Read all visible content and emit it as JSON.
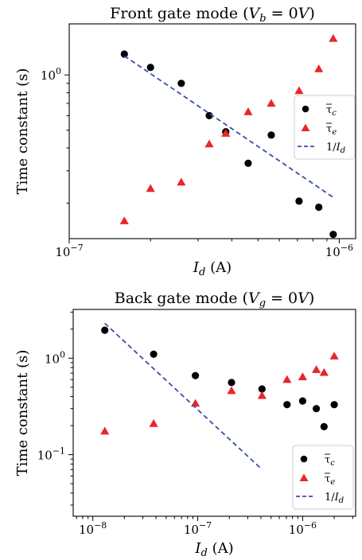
{
  "chart_data": [
    {
      "type": "scatter",
      "title": "Front gate mode ($V_b = 0V$)",
      "title_parts": [
        "Front gate mode (",
        "V",
        "b",
        " = 0",
        "V",
        ")"
      ],
      "xlabel_parts": [
        "I",
        "d",
        " (A)"
      ],
      "ylabel": "Time constant (s)",
      "xscale": "log",
      "yscale": "log",
      "xlim": [
        1e-07,
        1.15e-06
      ],
      "ylim": [
        0.128,
        1.9
      ],
      "xticks": [
        {
          "value": 1e-07,
          "base": "10",
          "exp": "−7"
        },
        {
          "value": 1e-06,
          "base": "10",
          "exp": "−6"
        }
      ],
      "yticks": [
        {
          "value": 1.0,
          "base": "10",
          "exp": "0"
        }
      ],
      "series": [
        {
          "name": "τ̄c",
          "marker": "circle",
          "color": "#000000",
          "x": [
            1.6e-07,
            2e-07,
            2.6e-07,
            3.3e-07,
            3.8e-07,
            4.6e-07,
            5.6e-07,
            7.1e-07,
            8.4e-07,
            9.5e-07
          ],
          "y": [
            1.3,
            1.1,
            0.9,
            0.6,
            0.49,
            0.33,
            0.47,
            0.205,
            0.19,
            0.135
          ]
        },
        {
          "name": "τ̄e",
          "marker": "triangle",
          "color": "#e8262b",
          "x": [
            1.6e-07,
            2e-07,
            2.6e-07,
            3.3e-07,
            3.8e-07,
            4.6e-07,
            5.6e-07,
            7.1e-07,
            8.4e-07,
            9.5e-07
          ],
          "y": [
            0.16,
            0.24,
            0.26,
            0.42,
            0.48,
            0.63,
            0.7,
            0.82,
            1.08,
            1.58
          ]
        },
        {
          "name": "1/Id",
          "line": "dashed",
          "color": "#3b4fa0",
          "x": [
            1.6e-07,
            9.5e-07
          ],
          "y": [
            1.27,
            0.215
          ]
        }
      ],
      "legend": "right",
      "legend_entries": [
        {
          "sym": "τ",
          "sub": "c",
          "overbar": true
        },
        {
          "sym": "τ",
          "sub": "e",
          "overbar": true
        },
        {
          "sym": "1/",
          "italic": "I",
          "sub": "d"
        }
      ]
    },
    {
      "type": "scatter",
      "title": "Back gate mode ($V_g = 0V$)",
      "title_parts": [
        "Back gate mode (",
        "V",
        "g",
        " = 0",
        "V",
        ")"
      ],
      "xlabel_parts": [
        "I",
        "d",
        " (A)"
      ],
      "ylabel": "Time constant (s)",
      "xscale": "log",
      "yscale": "log",
      "xlim": [
        6.5e-09,
        3.2e-06
      ],
      "ylim": [
        0.023,
        3.2
      ],
      "xticks": [
        {
          "value": 1e-08,
          "base": "10",
          "exp": "−8"
        },
        {
          "value": 1e-07,
          "base": "10",
          "exp": "−7"
        },
        {
          "value": 1e-06,
          "base": "10",
          "exp": "−6"
        }
      ],
      "yticks": [
        {
          "value": 1.0,
          "base": "10",
          "exp": "0"
        },
        {
          "value": 0.1,
          "base": "10",
          "exp": "−1"
        }
      ],
      "series": [
        {
          "name": "τ̄c",
          "marker": "circle",
          "color": "#000000",
          "x": [
            1.3e-08,
            3.8e-08,
            9.5e-08,
            2.1e-07,
            4.1e-07,
            7.1e-07,
            1e-06,
            1.35e-06,
            1.6e-06,
            2e-06
          ],
          "y": [
            1.95,
            1.1,
            0.66,
            0.56,
            0.48,
            0.33,
            0.36,
            0.3,
            0.195,
            0.33
          ]
        },
        {
          "name": "τ̄e",
          "marker": "triangle",
          "color": "#e8262b",
          "x": [
            1.3e-08,
            3.8e-08,
            9.5e-08,
            2.1e-07,
            4.1e-07,
            7.1e-07,
            1e-06,
            1.35e-06,
            1.6e-06,
            2e-06
          ],
          "y": [
            0.175,
            0.21,
            0.34,
            0.46,
            0.41,
            0.6,
            0.64,
            0.76,
            0.71,
            1.05
          ]
        },
        {
          "name": "1/Id",
          "line": "dashed",
          "color": "#3b4fa0",
          "x": [
            1.3e-08,
            4e-07
          ],
          "y": [
            2.3,
            0.072
          ]
        }
      ],
      "legend": "lower-right",
      "legend_entries": [
        {
          "sym": "τ",
          "sub": "c",
          "overbar": true
        },
        {
          "sym": "τ",
          "sub": "e",
          "overbar": true
        },
        {
          "sym": "1/",
          "italic": "I",
          "sub": "d"
        }
      ]
    }
  ]
}
